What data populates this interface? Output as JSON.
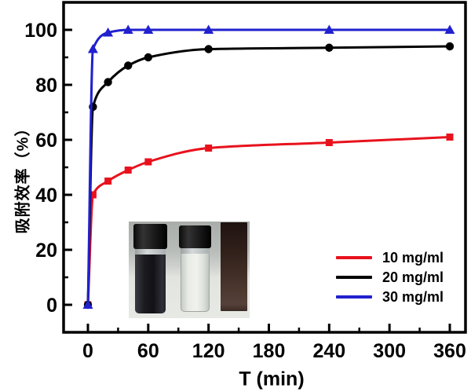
{
  "chart_data": {
    "type": "line",
    "title": "",
    "xlabel": "T (min)",
    "ylabel": "吸附效率（%）",
    "x": [
      0,
      5,
      20,
      40,
      60,
      120,
      240,
      360
    ],
    "series": [
      {
        "name": "10 mg/ml",
        "color": "#e8121d",
        "marker": "square",
        "values": [
          0,
          40,
          45,
          49,
          52,
          57,
          59,
          61
        ]
      },
      {
        "name": "20 mg/ml",
        "color": "#000000",
        "marker": "circle",
        "values": [
          0,
          72,
          81,
          87,
          90,
          93,
          93.5,
          94
        ]
      },
      {
        "name": "30 mg/ml",
        "color": "#2121cf",
        "marker": "triangle",
        "values": [
          0,
          93,
          99,
          100,
          100,
          100,
          100,
          100
        ]
      }
    ],
    "x_ticks": [
      0,
      60,
      120,
      180,
      240,
      300,
      360
    ],
    "x_minor_ticks": [
      30,
      90,
      150,
      210,
      270,
      330
    ],
    "y_ticks": [
      0,
      20,
      40,
      60,
      80,
      100
    ],
    "y_minor_ticks": [
      10,
      30,
      50,
      70,
      90
    ],
    "xlim": [
      -24,
      376
    ],
    "ylim": [
      -10,
      110
    ],
    "grid": false,
    "legend_position": "lower right",
    "frame_color": "#000000"
  }
}
